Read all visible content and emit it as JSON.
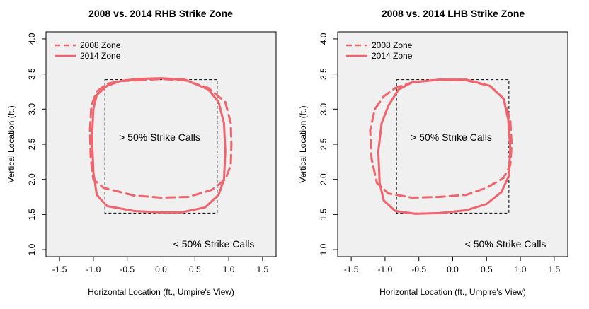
{
  "chart_data": [
    {
      "type": "line",
      "title": "2008 vs. 2014 RHB Strike Zone",
      "xlabel": "Horizontal Location (ft., Umpire's View)",
      "ylabel": "Vertical Location (ft.)",
      "xlim": [
        -1.7,
        1.7
      ],
      "ylim": [
        0.9,
        4.1
      ],
      "xticks": [
        "-1.5",
        "-1.0",
        "-0.5",
        "0.0",
        "0.5",
        "1.0",
        "1.5"
      ],
      "yticks": [
        "1.0",
        "1.5",
        "2.0",
        "2.5",
        "3.0",
        "3.5",
        "4.0"
      ],
      "legend_position": "top-left",
      "annotations": {
        "inside": "> 50% Strike Calls",
        "outside": "< 50% Strike Calls"
      },
      "rule_book_zone": {
        "x": [
          -0.83,
          0.83
        ],
        "y": [
          1.52,
          3.42
        ]
      },
      "series": [
        {
          "name": "2008 Zone",
          "style": "dashed",
          "color": "#f0646e",
          "x": [
            -0.35,
            0.0,
            0.35,
            0.7,
            0.95,
            1.03,
            1.04,
            1.03,
            0.95,
            0.75,
            0.4,
            0.0,
            -0.4,
            -0.85,
            -1.0,
            -1.04,
            -1.05,
            -1.03,
            -0.95,
            -0.8,
            -0.6,
            -0.35
          ],
          "y": [
            3.41,
            3.43,
            3.41,
            3.3,
            3.1,
            2.8,
            2.5,
            2.2,
            2.0,
            1.85,
            1.75,
            1.74,
            1.77,
            1.88,
            2.0,
            2.3,
            2.7,
            3.05,
            3.25,
            3.36,
            3.4,
            3.41
          ]
        },
        {
          "name": "2014 Zone",
          "style": "solid",
          "color": "#f0646e",
          "x": [
            -0.35,
            0.0,
            0.35,
            0.7,
            0.85,
            0.93,
            0.95,
            0.93,
            0.85,
            0.65,
            0.3,
            0.0,
            -0.4,
            -0.8,
            -0.95,
            -1.0,
            -1.02,
            -1.0,
            -0.95,
            -0.8,
            -0.6,
            -0.35
          ],
          "y": [
            3.43,
            3.44,
            3.42,
            3.28,
            3.1,
            2.8,
            2.4,
            2.0,
            1.78,
            1.6,
            1.53,
            1.53,
            1.55,
            1.62,
            1.78,
            2.1,
            2.6,
            3.0,
            3.2,
            3.33,
            3.4,
            3.43
          ]
        }
      ]
    },
    {
      "type": "line",
      "title": "2008 vs. 2014 LHB Strike Zone",
      "xlabel": "Horizontal Location (ft., Umpire's View)",
      "ylabel": "Vertical Location (ft.)",
      "xlim": [
        -1.7,
        1.7
      ],
      "ylim": [
        0.9,
        4.1
      ],
      "xticks": [
        "-1.5",
        "-1.0",
        "-0.5",
        "0.0",
        "0.5",
        "1.0",
        "1.5"
      ],
      "yticks": [
        "1.0",
        "1.5",
        "2.0",
        "2.5",
        "3.0",
        "3.5",
        "4.0"
      ],
      "legend_position": "top-left",
      "annotations": {
        "inside": "> 50% Strike Calls",
        "outside": "< 50% Strike Calls"
      },
      "rule_book_zone": {
        "x": [
          -0.83,
          0.83
        ],
        "y": [
          1.52,
          3.42
        ]
      },
      "series": [
        {
          "name": "2008 Zone",
          "style": "dashed",
          "color": "#f0646e",
          "x": [
            -0.6,
            -0.2,
            0.2,
            0.55,
            0.75,
            0.85,
            0.87,
            0.85,
            0.75,
            0.5,
            0.2,
            -0.2,
            -0.6,
            -0.95,
            -1.12,
            -1.2,
            -1.22,
            -1.15,
            -1.02,
            -0.85,
            -0.6
          ],
          "y": [
            3.38,
            3.42,
            3.41,
            3.33,
            3.15,
            2.85,
            2.5,
            2.2,
            2.02,
            1.88,
            1.78,
            1.75,
            1.74,
            1.8,
            1.95,
            2.3,
            2.7,
            3.0,
            3.18,
            3.3,
            3.38
          ]
        },
        {
          "name": "2014 Zone",
          "style": "solid",
          "color": "#f0646e",
          "x": [
            -0.6,
            -0.2,
            0.2,
            0.55,
            0.75,
            0.82,
            0.85,
            0.83,
            0.72,
            0.5,
            0.2,
            -0.2,
            -0.55,
            -0.85,
            -1.02,
            -1.08,
            -1.1,
            -1.05,
            -0.95,
            -0.8,
            -0.6
          ],
          "y": [
            3.38,
            3.42,
            3.42,
            3.33,
            3.15,
            2.85,
            2.45,
            2.05,
            1.82,
            1.65,
            1.56,
            1.52,
            1.51,
            1.55,
            1.7,
            1.95,
            2.4,
            2.8,
            3.05,
            3.28,
            3.38
          ]
        }
      ]
    }
  ]
}
